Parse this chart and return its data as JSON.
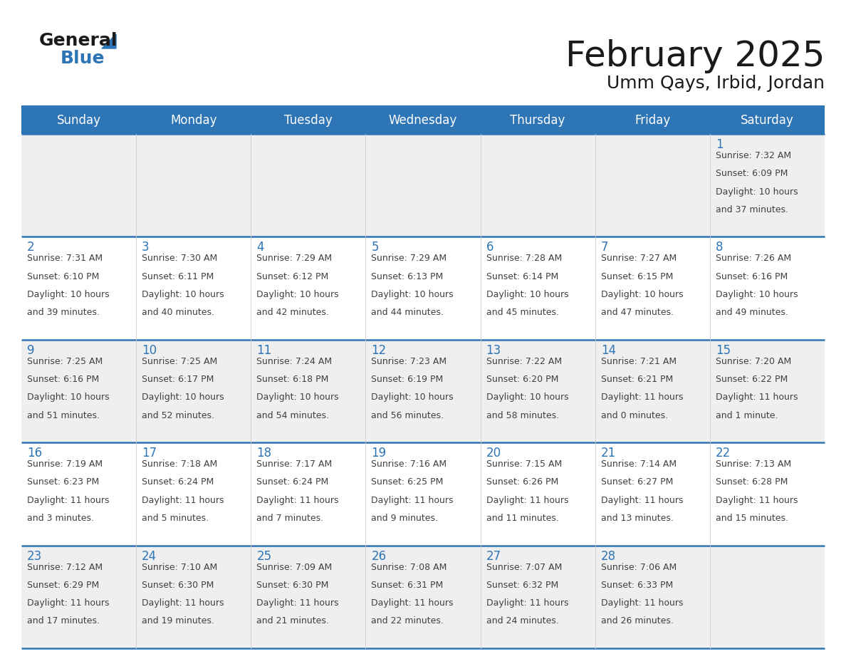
{
  "title": "February 2025",
  "subtitle": "Umm Qays, Irbid, Jordan",
  "days_of_week": [
    "Sunday",
    "Monday",
    "Tuesday",
    "Wednesday",
    "Thursday",
    "Friday",
    "Saturday"
  ],
  "header_bg_color": "#2E75B6",
  "header_text_color": "#FFFFFF",
  "row_colors": [
    "#EFEFEF",
    "#FFFFFF",
    "#EFEFEF",
    "#FFFFFF",
    "#EFEFEF"
  ],
  "day_num_color": "#2E75B6",
  "text_color": "#404040",
  "line_color": "#2E75B6",
  "calendar_data": [
    [
      null,
      null,
      null,
      null,
      null,
      null,
      {
        "day": "1",
        "sunrise": "7:32 AM",
        "sunset": "6:09 PM",
        "daylight1": "10 hours",
        "daylight2": "and 37 minutes."
      }
    ],
    [
      {
        "day": "2",
        "sunrise": "7:31 AM",
        "sunset": "6:10 PM",
        "daylight1": "10 hours",
        "daylight2": "and 39 minutes."
      },
      {
        "day": "3",
        "sunrise": "7:30 AM",
        "sunset": "6:11 PM",
        "daylight1": "10 hours",
        "daylight2": "and 40 minutes."
      },
      {
        "day": "4",
        "sunrise": "7:29 AM",
        "sunset": "6:12 PM",
        "daylight1": "10 hours",
        "daylight2": "and 42 minutes."
      },
      {
        "day": "5",
        "sunrise": "7:29 AM",
        "sunset": "6:13 PM",
        "daylight1": "10 hours",
        "daylight2": "and 44 minutes."
      },
      {
        "day": "6",
        "sunrise": "7:28 AM",
        "sunset": "6:14 PM",
        "daylight1": "10 hours",
        "daylight2": "and 45 minutes."
      },
      {
        "day": "7",
        "sunrise": "7:27 AM",
        "sunset": "6:15 PM",
        "daylight1": "10 hours",
        "daylight2": "and 47 minutes."
      },
      {
        "day": "8",
        "sunrise": "7:26 AM",
        "sunset": "6:16 PM",
        "daylight1": "10 hours",
        "daylight2": "and 49 minutes."
      }
    ],
    [
      {
        "day": "9",
        "sunrise": "7:25 AM",
        "sunset": "6:16 PM",
        "daylight1": "10 hours",
        "daylight2": "and 51 minutes."
      },
      {
        "day": "10",
        "sunrise": "7:25 AM",
        "sunset": "6:17 PM",
        "daylight1": "10 hours",
        "daylight2": "and 52 minutes."
      },
      {
        "day": "11",
        "sunrise": "7:24 AM",
        "sunset": "6:18 PM",
        "daylight1": "10 hours",
        "daylight2": "and 54 minutes."
      },
      {
        "day": "12",
        "sunrise": "7:23 AM",
        "sunset": "6:19 PM",
        "daylight1": "10 hours",
        "daylight2": "and 56 minutes."
      },
      {
        "day": "13",
        "sunrise": "7:22 AM",
        "sunset": "6:20 PM",
        "daylight1": "10 hours",
        "daylight2": "and 58 minutes."
      },
      {
        "day": "14",
        "sunrise": "7:21 AM",
        "sunset": "6:21 PM",
        "daylight1": "11 hours",
        "daylight2": "and 0 minutes."
      },
      {
        "day": "15",
        "sunrise": "7:20 AM",
        "sunset": "6:22 PM",
        "daylight1": "11 hours",
        "daylight2": "and 1 minute."
      }
    ],
    [
      {
        "day": "16",
        "sunrise": "7:19 AM",
        "sunset": "6:23 PM",
        "daylight1": "11 hours",
        "daylight2": "and 3 minutes."
      },
      {
        "day": "17",
        "sunrise": "7:18 AM",
        "sunset": "6:24 PM",
        "daylight1": "11 hours",
        "daylight2": "and 5 minutes."
      },
      {
        "day": "18",
        "sunrise": "7:17 AM",
        "sunset": "6:24 PM",
        "daylight1": "11 hours",
        "daylight2": "and 7 minutes."
      },
      {
        "day": "19",
        "sunrise": "7:16 AM",
        "sunset": "6:25 PM",
        "daylight1": "11 hours",
        "daylight2": "and 9 minutes."
      },
      {
        "day": "20",
        "sunrise": "7:15 AM",
        "sunset": "6:26 PM",
        "daylight1": "11 hours",
        "daylight2": "and 11 minutes."
      },
      {
        "day": "21",
        "sunrise": "7:14 AM",
        "sunset": "6:27 PM",
        "daylight1": "11 hours",
        "daylight2": "and 13 minutes."
      },
      {
        "day": "22",
        "sunrise": "7:13 AM",
        "sunset": "6:28 PM",
        "daylight1": "11 hours",
        "daylight2": "and 15 minutes."
      }
    ],
    [
      {
        "day": "23",
        "sunrise": "7:12 AM",
        "sunset": "6:29 PM",
        "daylight1": "11 hours",
        "daylight2": "and 17 minutes."
      },
      {
        "day": "24",
        "sunrise": "7:10 AM",
        "sunset": "6:30 PM",
        "daylight1": "11 hours",
        "daylight2": "and 19 minutes."
      },
      {
        "day": "25",
        "sunrise": "7:09 AM",
        "sunset": "6:30 PM",
        "daylight1": "11 hours",
        "daylight2": "and 21 minutes."
      },
      {
        "day": "26",
        "sunrise": "7:08 AM",
        "sunset": "6:31 PM",
        "daylight1": "11 hours",
        "daylight2": "and 22 minutes."
      },
      {
        "day": "27",
        "sunrise": "7:07 AM",
        "sunset": "6:32 PM",
        "daylight1": "11 hours",
        "daylight2": "and 24 minutes."
      },
      {
        "day": "28",
        "sunrise": "7:06 AM",
        "sunset": "6:33 PM",
        "daylight1": "11 hours",
        "daylight2": "and 26 minutes."
      },
      null
    ]
  ],
  "logo_text1": "General",
  "logo_text2": "Blue",
  "logo_text1_color": "#1a1a1a",
  "logo_text2_color": "#2E75B6",
  "logo_triangle_color": "#2E75B6",
  "title_fontsize": 36,
  "subtitle_fontsize": 18,
  "dow_fontsize": 12,
  "day_num_fontsize": 12,
  "cell_text_fontsize": 9
}
